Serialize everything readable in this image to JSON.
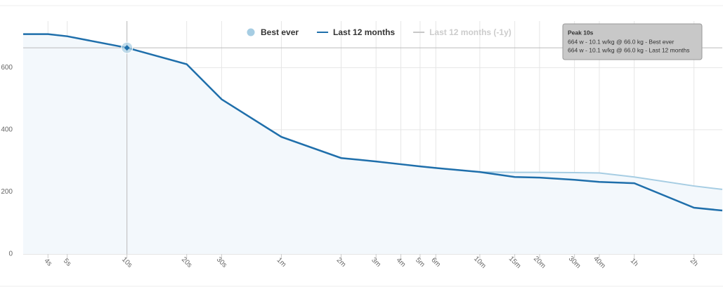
{
  "chart_data": {
    "type": "line",
    "x": [
      3,
      4,
      5,
      10,
      20,
      30,
      60,
      120,
      180,
      240,
      300,
      360,
      600,
      900,
      1200,
      1800,
      2400,
      3600,
      7200,
      10000
    ],
    "xlim": [
      3,
      10000
    ],
    "xscale": "log",
    "xticks": [
      {
        "value": 4,
        "label": "4s"
      },
      {
        "value": 5,
        "label": "5s"
      },
      {
        "value": 10,
        "label": "10s"
      },
      {
        "value": 20,
        "label": "20s"
      },
      {
        "value": 30,
        "label": "30s"
      },
      {
        "value": 60,
        "label": "1m"
      },
      {
        "value": 120,
        "label": "2m"
      },
      {
        "value": 180,
        "label": "3m"
      },
      {
        "value": 240,
        "label": "4m"
      },
      {
        "value": 300,
        "label": "5m"
      },
      {
        "value": 360,
        "label": "6m"
      },
      {
        "value": 600,
        "label": "10m"
      },
      {
        "value": 900,
        "label": "15m"
      },
      {
        "value": 1200,
        "label": "20m"
      },
      {
        "value": 1800,
        "label": "30m"
      },
      {
        "value": 2400,
        "label": "40m"
      },
      {
        "value": 3600,
        "label": "1h"
      },
      {
        "value": 7200,
        "label": "2h"
      }
    ],
    "ylim": [
      0,
      750
    ],
    "yticks": [
      0,
      200,
      400,
      600
    ],
    "grid": true,
    "series": [
      {
        "name": "Best ever",
        "color": "#a6cde3",
        "area": true,
        "visible": true,
        "values": [
          708,
          708,
          701,
          664,
          611,
          498,
          377,
          309,
          298,
          289,
          282,
          277,
          264,
          263,
          263,
          262,
          261,
          248,
          219,
          208
        ]
      },
      {
        "name": "Last 12 months",
        "color": "#1f6fab",
        "visible": true,
        "values": [
          708,
          708,
          701,
          664,
          611,
          498,
          377,
          309,
          298,
          289,
          282,
          277,
          264,
          248,
          246,
          239,
          232,
          228,
          149,
          140
        ]
      },
      {
        "name": "Last 12 months (-1y)",
        "color": "#c8c8c8",
        "visible": false,
        "values": [
          null,
          null,
          null,
          null,
          null,
          null,
          null,
          null,
          null,
          null,
          null,
          null,
          null,
          null,
          null,
          null,
          null,
          null,
          null,
          null
        ]
      }
    ],
    "tooltip": {
      "index": 3,
      "title": "Peak 10s",
      "lines": [
        "664 w - 10.1 w/kg @ 66.0 kg - Best ever",
        "664 w - 10.1 w/kg @ 66.0 kg - Last 12 months"
      ]
    }
  }
}
